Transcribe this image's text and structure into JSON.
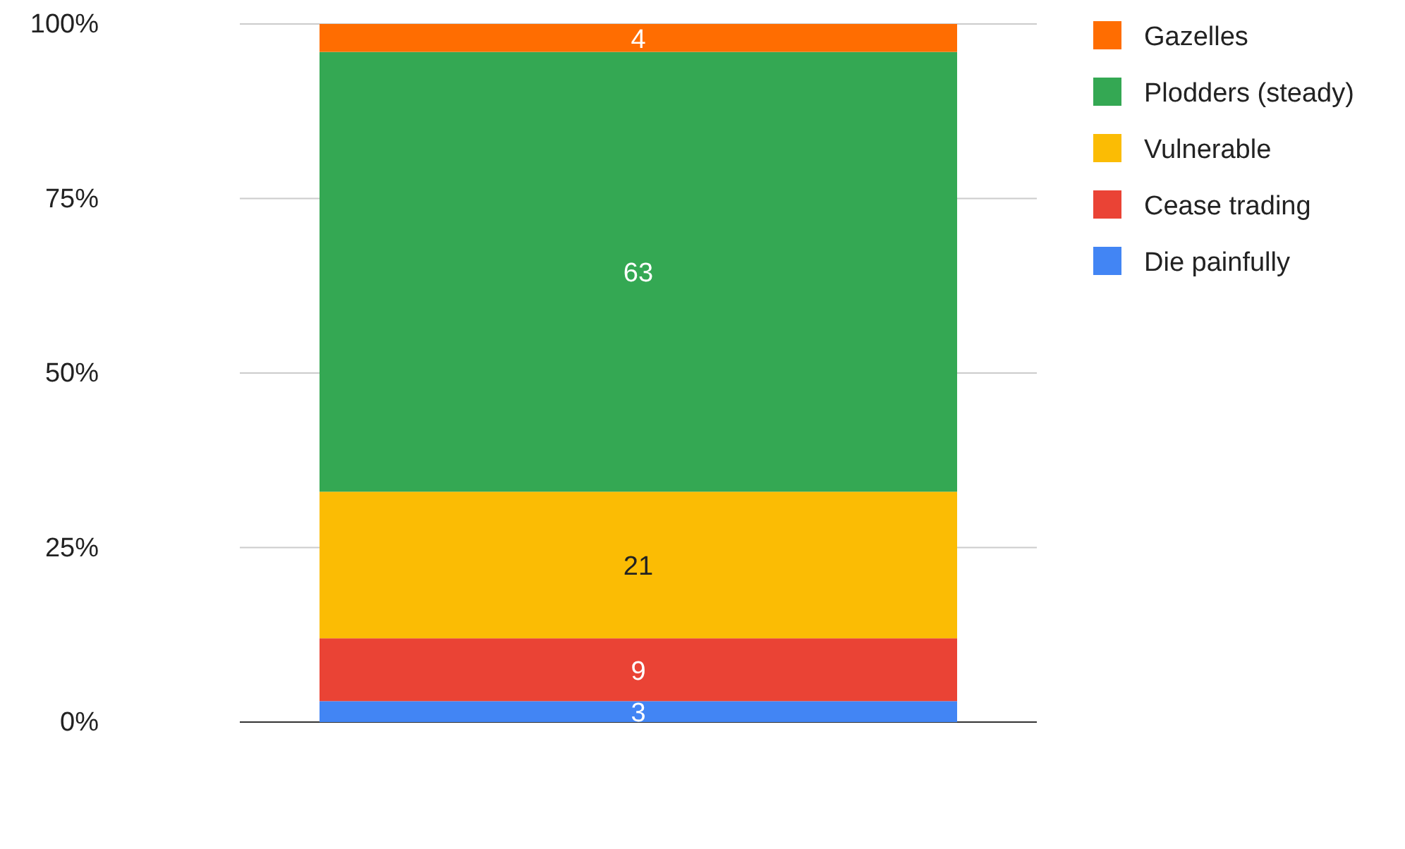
{
  "chart_data": {
    "type": "bar",
    "stacked": true,
    "categories": [
      null
    ],
    "series": [
      {
        "name": "Die painfully",
        "color": "#4285f4",
        "values": [
          3
        ]
      },
      {
        "name": "Cease trading",
        "color": "#ea4335",
        "values": [
          9
        ]
      },
      {
        "name": "Vulnerable",
        "color": "#fbbc04",
        "values": [
          21
        ]
      },
      {
        "name": "Plodders (steady)",
        "color": "#34a853",
        "values": [
          63
        ]
      },
      {
        "name": "Gazelles",
        "color": "#ff6d01",
        "values": [
          4
        ]
      }
    ],
    "ylim": [
      0,
      100
    ],
    "yticks": [
      {
        "value": 0,
        "label": "0%"
      },
      {
        "value": 25,
        "label": "25%"
      },
      {
        "value": 50,
        "label": "50%"
      },
      {
        "value": 75,
        "label": "75%"
      },
      {
        "value": 100,
        "label": "100%"
      }
    ],
    "grid": "y",
    "legend": "right",
    "data_labels": true
  }
}
